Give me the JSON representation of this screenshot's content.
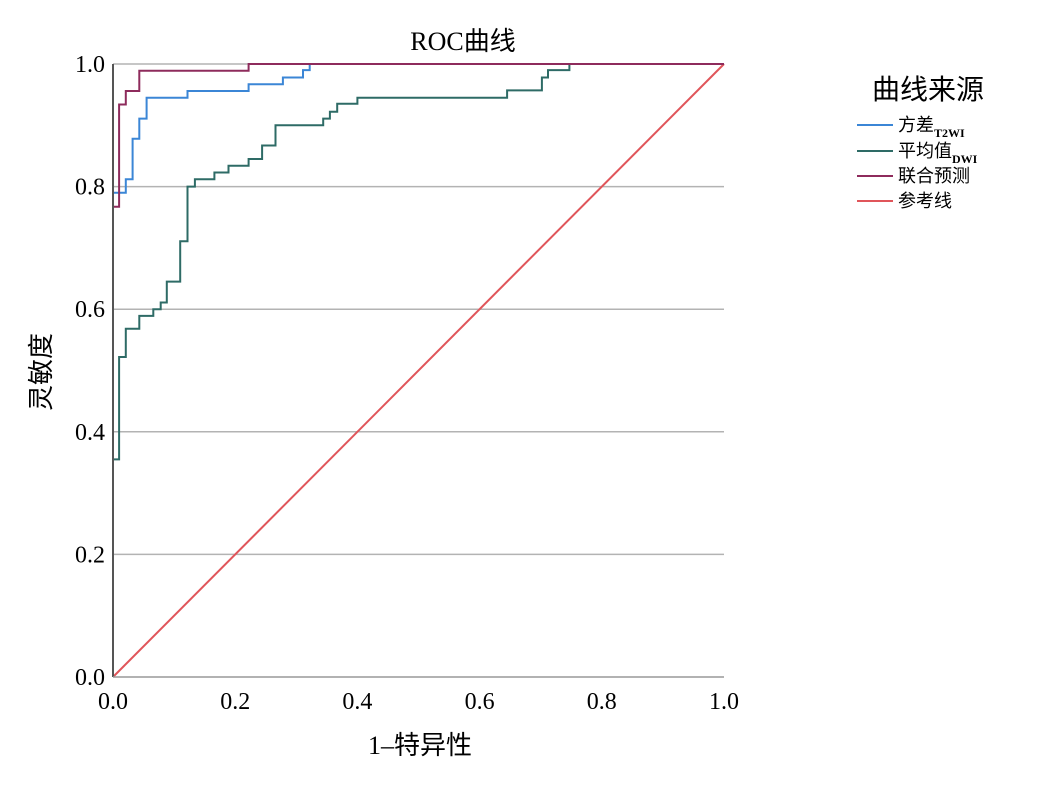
{
  "chart_data": {
    "type": "line",
    "title": "ROC曲线",
    "xlabel": "1–特异性",
    "ylabel": "灵敏度",
    "xlim": [
      0,
      1
    ],
    "ylim": [
      0,
      1
    ],
    "x_ticks": [
      "0.0",
      "0.2",
      "0.4",
      "0.6",
      "0.8",
      "1.0"
    ],
    "y_ticks": [
      "0.0",
      "0.2",
      "0.4",
      "0.6",
      "0.8",
      "1.0"
    ],
    "grid": "horizontal",
    "legend_title": "曲线来源",
    "legend_position": "right",
    "series": [
      {
        "name": "方差",
        "name_sub": "T2WI",
        "color": "#3b86d6",
        "step": true,
        "points": [
          [
            0,
            0
          ],
          [
            0,
            0.79
          ],
          [
            0.021,
            0.79
          ],
          [
            0.021,
            0.812
          ],
          [
            0.032,
            0.812
          ],
          [
            0.032,
            0.878
          ],
          [
            0.043,
            0.878
          ],
          [
            0.043,
            0.911
          ],
          [
            0.055,
            0.911
          ],
          [
            0.055,
            0.945
          ],
          [
            0.122,
            0.945
          ],
          [
            0.122,
            0.956
          ],
          [
            0.222,
            0.956
          ],
          [
            0.222,
            0.967
          ],
          [
            0.278,
            0.967
          ],
          [
            0.278,
            0.978
          ],
          [
            0.311,
            0.978
          ],
          [
            0.311,
            0.99
          ],
          [
            0.322,
            0.99
          ],
          [
            0.322,
            1
          ],
          [
            1,
            1
          ]
        ]
      },
      {
        "name": "平均值",
        "name_sub": "DWI",
        "color": "#2e6b66",
        "step": true,
        "points": [
          [
            0,
            0
          ],
          [
            0,
            0.355
          ],
          [
            0.01,
            0.355
          ],
          [
            0.01,
            0.522
          ],
          [
            0.021,
            0.522
          ],
          [
            0.021,
            0.568
          ],
          [
            0.043,
            0.568
          ],
          [
            0.043,
            0.589
          ],
          [
            0.066,
            0.589
          ],
          [
            0.066,
            0.6
          ],
          [
            0.078,
            0.6
          ],
          [
            0.078,
            0.611
          ],
          [
            0.088,
            0.611
          ],
          [
            0.088,
            0.645
          ],
          [
            0.11,
            0.645
          ],
          [
            0.11,
            0.711
          ],
          [
            0.122,
            0.711
          ],
          [
            0.122,
            0.8
          ],
          [
            0.134,
            0.8
          ],
          [
            0.134,
            0.812
          ],
          [
            0.166,
            0.812
          ],
          [
            0.166,
            0.823
          ],
          [
            0.189,
            0.823
          ],
          [
            0.189,
            0.834
          ],
          [
            0.222,
            0.834
          ],
          [
            0.222,
            0.845
          ],
          [
            0.244,
            0.845
          ],
          [
            0.244,
            0.867
          ],
          [
            0.266,
            0.867
          ],
          [
            0.266,
            0.9
          ],
          [
            0.344,
            0.9
          ],
          [
            0.344,
            0.911
          ],
          [
            0.355,
            0.911
          ],
          [
            0.355,
            0.922
          ],
          [
            0.367,
            0.922
          ],
          [
            0.367,
            0.935
          ],
          [
            0.4,
            0.935
          ],
          [
            0.4,
            0.945
          ],
          [
            0.645,
            0.945
          ],
          [
            0.645,
            0.957
          ],
          [
            0.702,
            0.957
          ],
          [
            0.702,
            0.978
          ],
          [
            0.712,
            0.978
          ],
          [
            0.712,
            0.99
          ],
          [
            0.747,
            0.99
          ],
          [
            0.747,
            1
          ],
          [
            1,
            1
          ]
        ]
      },
      {
        "name": "联合预测",
        "name_sub": "",
        "color": "#8e2b5c",
        "step": true,
        "points": [
          [
            0,
            0
          ],
          [
            0,
            0.767
          ],
          [
            0.01,
            0.767
          ],
          [
            0.01,
            0.934
          ],
          [
            0.021,
            0.934
          ],
          [
            0.021,
            0.956
          ],
          [
            0.043,
            0.956
          ],
          [
            0.043,
            0.989
          ],
          [
            0.222,
            0.989
          ],
          [
            0.222,
            1
          ],
          [
            1,
            1
          ]
        ]
      },
      {
        "name": "参考线",
        "name_sub": "",
        "color": "#e0555a",
        "step": false,
        "points": [
          [
            0,
            0
          ],
          [
            1,
            1
          ]
        ]
      }
    ]
  }
}
